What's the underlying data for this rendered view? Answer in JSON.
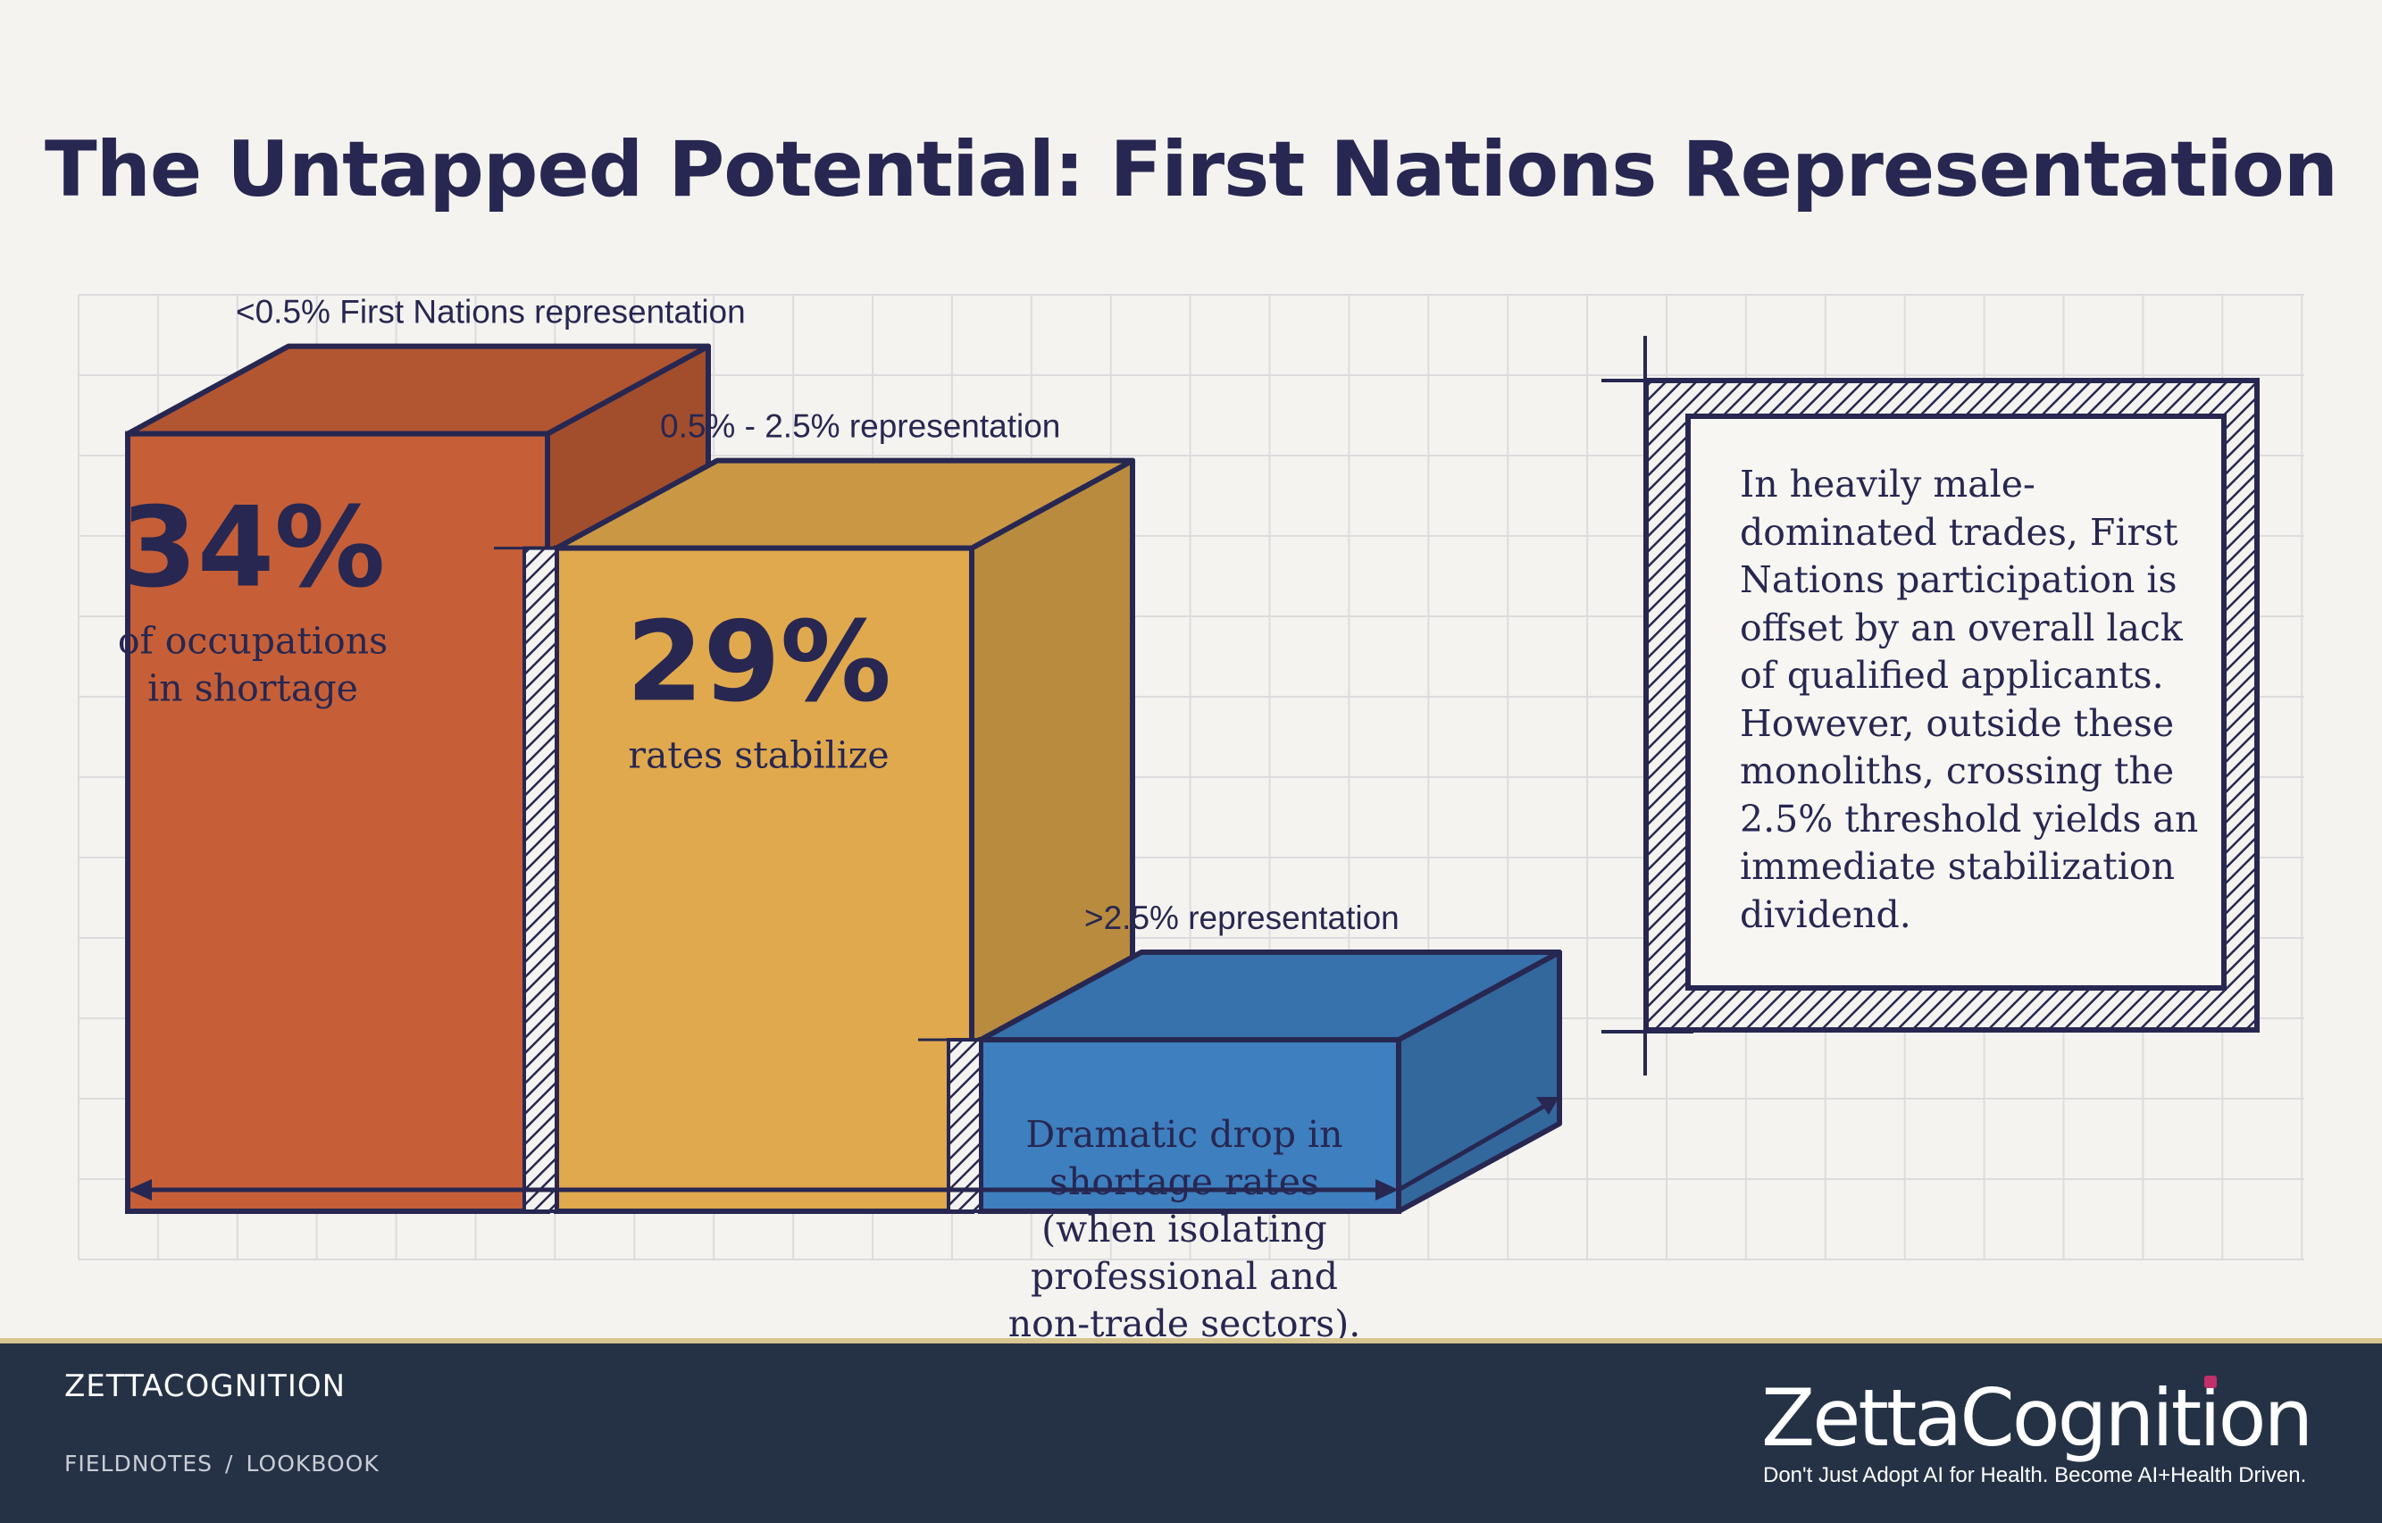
{
  "title": "The Untapped Potential: First Nations Representation",
  "chart_data": {
    "type": "bar",
    "categories": [
      "<0.5% First Nations representation",
      "0.5% - 2.5% representation",
      ">2.5% representation"
    ],
    "values": [
      34,
      29,
      null
    ],
    "value_labels": [
      "34%",
      "29%",
      ""
    ],
    "descriptions": [
      [
        "of occupations",
        "in shortage"
      ],
      [
        "rates stabilize"
      ],
      [
        "Dramatic drop in",
        "shortage rates",
        "(when isolating",
        "professional and",
        "non-trade sectors)."
      ]
    ],
    "colors": [
      "#c65f37",
      "#e0a94d",
      "#3e7fbf"
    ],
    "ylim": [
      0,
      40
    ],
    "grid": true
  },
  "callout": {
    "text": "In heavily male-dominated trades, First Nations participation is offset by an overall lack of qualified applicants. However, outside these monoliths, crossing the 2.5% threshold yields an immediate stabilization dividend."
  },
  "footer": {
    "brand": "ZETTACOGNITION",
    "breadcrumb": [
      "FIELDNOTES",
      "LOOKBOOK"
    ],
    "breadcrumb_separator": "/",
    "logo": "ZettaCognition",
    "tagline": "Don't Just Adopt AI for Health. Become AI+Health Driven."
  }
}
